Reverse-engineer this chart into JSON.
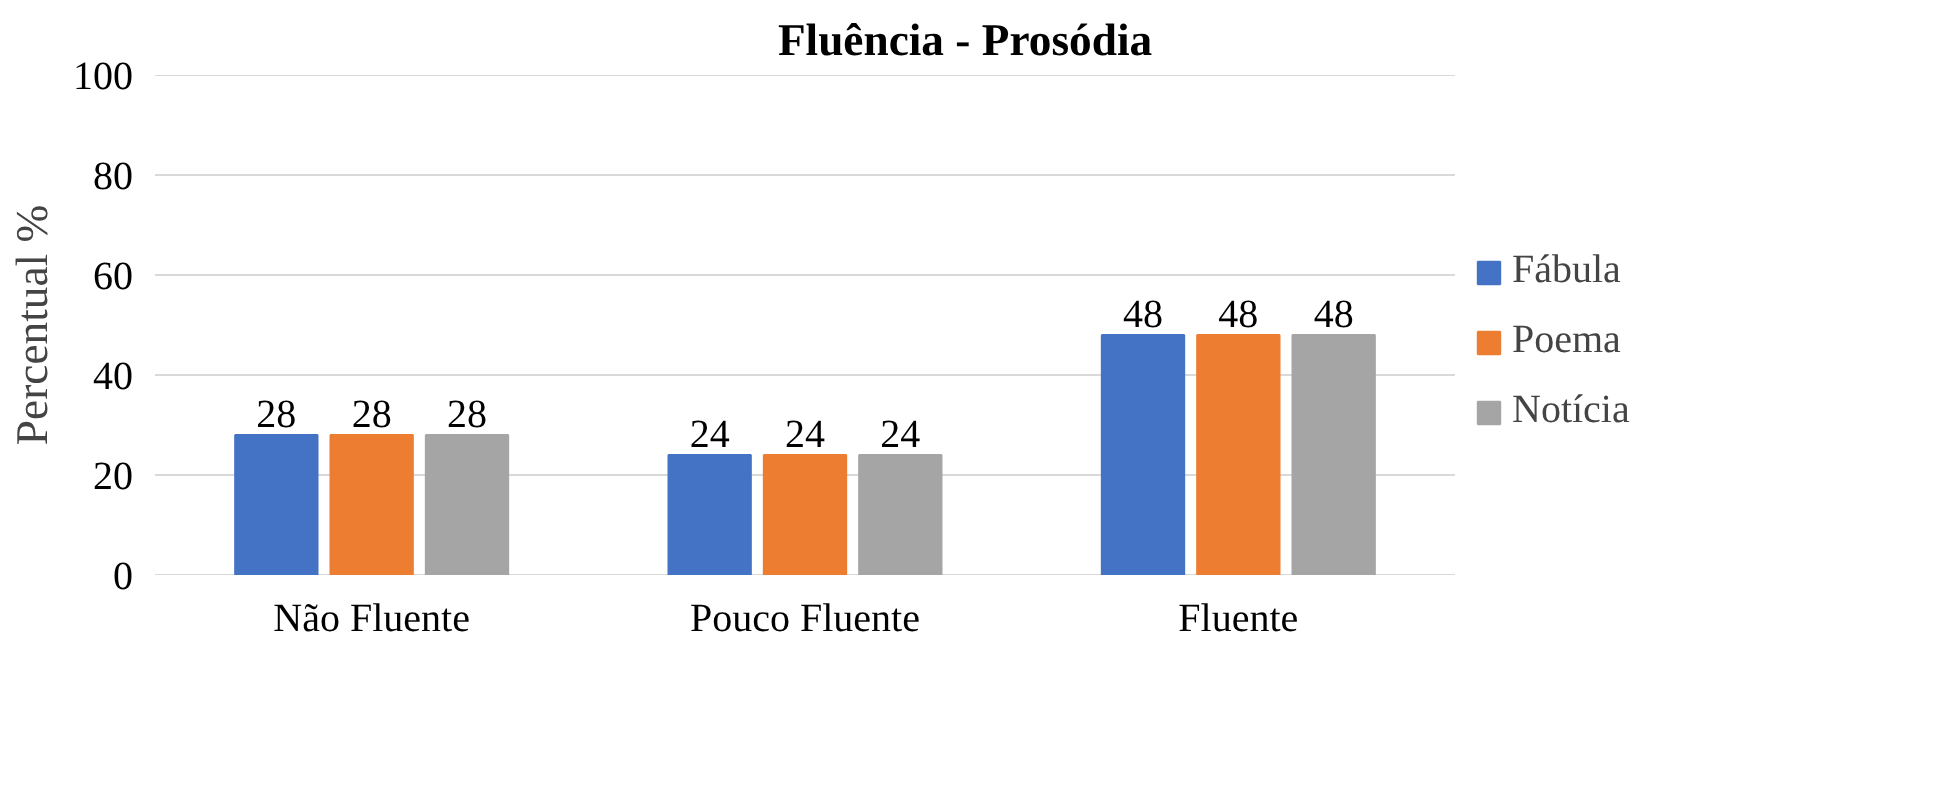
{
  "chart_data": {
    "type": "bar",
    "title": "Fluência - Prosódia",
    "ylabel": "Percentual %",
    "categories": [
      "Não Fluente",
      "Pouco Fluente",
      "Fluente"
    ],
    "series": [
      {
        "name": "Fábula",
        "color": "#4472c4",
        "values": [
          28,
          24,
          48
        ]
      },
      {
        "name": "Poema",
        "color": "#ed7d31",
        "values": [
          28,
          24,
          48
        ]
      },
      {
        "name": "Notícia",
        "color": "#a5a5a5",
        "values": [
          28,
          24,
          48
        ]
      }
    ],
    "ylim": [
      0,
      100
    ],
    "yticks": [
      0,
      20,
      40,
      60,
      80,
      100
    ],
    "grid": "y",
    "legend": "right",
    "data_labels": true
  }
}
